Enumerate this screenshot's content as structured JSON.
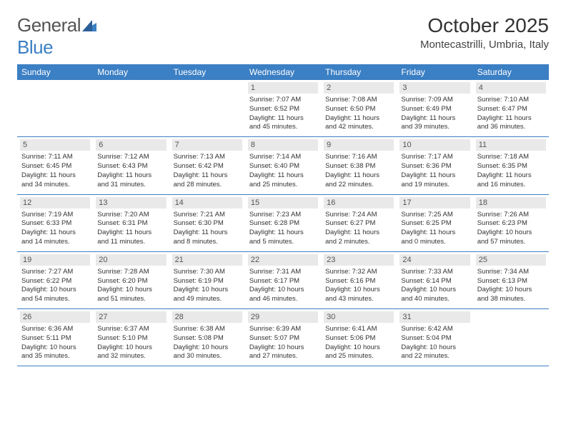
{
  "logo": {
    "prefix": "General",
    "suffix": "Blue"
  },
  "title": "October 2025",
  "location": "Montecastrilli, Umbria, Italy",
  "colors": {
    "brand_blue": "#3b7fc4",
    "daynum_bg": "#e9e9e9",
    "text": "#333333",
    "logo_gray": "#555555",
    "bg": "#ffffff"
  },
  "dow": [
    "Sunday",
    "Monday",
    "Tuesday",
    "Wednesday",
    "Thursday",
    "Friday",
    "Saturday"
  ],
  "weeks": [
    [
      {
        "n": "",
        "sr": "",
        "ss": "",
        "dl": ""
      },
      {
        "n": "",
        "sr": "",
        "ss": "",
        "dl": ""
      },
      {
        "n": "",
        "sr": "",
        "ss": "",
        "dl": ""
      },
      {
        "n": "1",
        "sr": "Sunrise: 7:07 AM",
        "ss": "Sunset: 6:52 PM",
        "dl": "Daylight: 11 hours and 45 minutes."
      },
      {
        "n": "2",
        "sr": "Sunrise: 7:08 AM",
        "ss": "Sunset: 6:50 PM",
        "dl": "Daylight: 11 hours and 42 minutes."
      },
      {
        "n": "3",
        "sr": "Sunrise: 7:09 AM",
        "ss": "Sunset: 6:49 PM",
        "dl": "Daylight: 11 hours and 39 minutes."
      },
      {
        "n": "4",
        "sr": "Sunrise: 7:10 AM",
        "ss": "Sunset: 6:47 PM",
        "dl": "Daylight: 11 hours and 36 minutes."
      }
    ],
    [
      {
        "n": "5",
        "sr": "Sunrise: 7:11 AM",
        "ss": "Sunset: 6:45 PM",
        "dl": "Daylight: 11 hours and 34 minutes."
      },
      {
        "n": "6",
        "sr": "Sunrise: 7:12 AM",
        "ss": "Sunset: 6:43 PM",
        "dl": "Daylight: 11 hours and 31 minutes."
      },
      {
        "n": "7",
        "sr": "Sunrise: 7:13 AM",
        "ss": "Sunset: 6:42 PM",
        "dl": "Daylight: 11 hours and 28 minutes."
      },
      {
        "n": "8",
        "sr": "Sunrise: 7:14 AM",
        "ss": "Sunset: 6:40 PM",
        "dl": "Daylight: 11 hours and 25 minutes."
      },
      {
        "n": "9",
        "sr": "Sunrise: 7:16 AM",
        "ss": "Sunset: 6:38 PM",
        "dl": "Daylight: 11 hours and 22 minutes."
      },
      {
        "n": "10",
        "sr": "Sunrise: 7:17 AM",
        "ss": "Sunset: 6:36 PM",
        "dl": "Daylight: 11 hours and 19 minutes."
      },
      {
        "n": "11",
        "sr": "Sunrise: 7:18 AM",
        "ss": "Sunset: 6:35 PM",
        "dl": "Daylight: 11 hours and 16 minutes."
      }
    ],
    [
      {
        "n": "12",
        "sr": "Sunrise: 7:19 AM",
        "ss": "Sunset: 6:33 PM",
        "dl": "Daylight: 11 hours and 14 minutes."
      },
      {
        "n": "13",
        "sr": "Sunrise: 7:20 AM",
        "ss": "Sunset: 6:31 PM",
        "dl": "Daylight: 11 hours and 11 minutes."
      },
      {
        "n": "14",
        "sr": "Sunrise: 7:21 AM",
        "ss": "Sunset: 6:30 PM",
        "dl": "Daylight: 11 hours and 8 minutes."
      },
      {
        "n": "15",
        "sr": "Sunrise: 7:23 AM",
        "ss": "Sunset: 6:28 PM",
        "dl": "Daylight: 11 hours and 5 minutes."
      },
      {
        "n": "16",
        "sr": "Sunrise: 7:24 AM",
        "ss": "Sunset: 6:27 PM",
        "dl": "Daylight: 11 hours and 2 minutes."
      },
      {
        "n": "17",
        "sr": "Sunrise: 7:25 AM",
        "ss": "Sunset: 6:25 PM",
        "dl": "Daylight: 11 hours and 0 minutes."
      },
      {
        "n": "18",
        "sr": "Sunrise: 7:26 AM",
        "ss": "Sunset: 6:23 PM",
        "dl": "Daylight: 10 hours and 57 minutes."
      }
    ],
    [
      {
        "n": "19",
        "sr": "Sunrise: 7:27 AM",
        "ss": "Sunset: 6:22 PM",
        "dl": "Daylight: 10 hours and 54 minutes."
      },
      {
        "n": "20",
        "sr": "Sunrise: 7:28 AM",
        "ss": "Sunset: 6:20 PM",
        "dl": "Daylight: 10 hours and 51 minutes."
      },
      {
        "n": "21",
        "sr": "Sunrise: 7:30 AM",
        "ss": "Sunset: 6:19 PM",
        "dl": "Daylight: 10 hours and 49 minutes."
      },
      {
        "n": "22",
        "sr": "Sunrise: 7:31 AM",
        "ss": "Sunset: 6:17 PM",
        "dl": "Daylight: 10 hours and 46 minutes."
      },
      {
        "n": "23",
        "sr": "Sunrise: 7:32 AM",
        "ss": "Sunset: 6:16 PM",
        "dl": "Daylight: 10 hours and 43 minutes."
      },
      {
        "n": "24",
        "sr": "Sunrise: 7:33 AM",
        "ss": "Sunset: 6:14 PM",
        "dl": "Daylight: 10 hours and 40 minutes."
      },
      {
        "n": "25",
        "sr": "Sunrise: 7:34 AM",
        "ss": "Sunset: 6:13 PM",
        "dl": "Daylight: 10 hours and 38 minutes."
      }
    ],
    [
      {
        "n": "26",
        "sr": "Sunrise: 6:36 AM",
        "ss": "Sunset: 5:11 PM",
        "dl": "Daylight: 10 hours and 35 minutes."
      },
      {
        "n": "27",
        "sr": "Sunrise: 6:37 AM",
        "ss": "Sunset: 5:10 PM",
        "dl": "Daylight: 10 hours and 32 minutes."
      },
      {
        "n": "28",
        "sr": "Sunrise: 6:38 AM",
        "ss": "Sunset: 5:08 PM",
        "dl": "Daylight: 10 hours and 30 minutes."
      },
      {
        "n": "29",
        "sr": "Sunrise: 6:39 AM",
        "ss": "Sunset: 5:07 PM",
        "dl": "Daylight: 10 hours and 27 minutes."
      },
      {
        "n": "30",
        "sr": "Sunrise: 6:41 AM",
        "ss": "Sunset: 5:06 PM",
        "dl": "Daylight: 10 hours and 25 minutes."
      },
      {
        "n": "31",
        "sr": "Sunrise: 6:42 AM",
        "ss": "Sunset: 5:04 PM",
        "dl": "Daylight: 10 hours and 22 minutes."
      },
      {
        "n": "",
        "sr": "",
        "ss": "",
        "dl": ""
      }
    ]
  ]
}
